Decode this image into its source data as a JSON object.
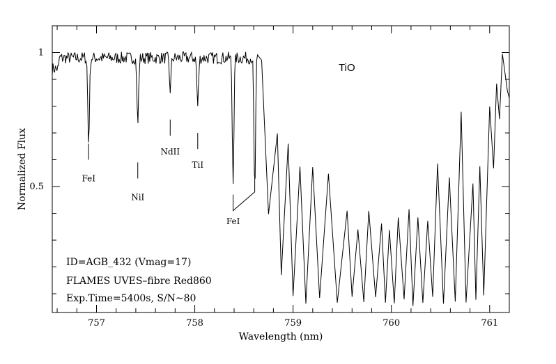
{
  "chart_data": {
    "type": "line",
    "xlabel": "Wavelength (nm)",
    "ylabel": "Normalized Flux",
    "xlim": [
      756.55,
      761.2
    ],
    "ylim": [
      0.03,
      1.1
    ],
    "x_ticks": [
      757,
      758,
      759,
      760,
      761
    ],
    "x_tick_labels": [
      "757",
      "758",
      "759",
      "760",
      "761"
    ],
    "y_ticks": [
      1,
      0.5
    ],
    "y_tick_labels": [
      "1",
      "0.5"
    ],
    "x_minor_step": 0.2,
    "y_minor_step": 0.1,
    "grid": false,
    "line_color": "#000000",
    "continuum": {
      "start": 756.55,
      "end": 758.65,
      "level": 0.98
    },
    "absorption_lines": [
      {
        "label": "FeI",
        "center": 756.92,
        "depth": 0.32
      },
      {
        "label": "NiI",
        "center": 757.42,
        "depth": 0.25
      },
      {
        "label": "NdII",
        "center": 757.75,
        "depth": 0.12
      },
      {
        "label": "TiI",
        "center": 758.03,
        "depth": 0.18
      },
      {
        "label": "FeI",
        "center": 758.39,
        "depth": 0.45
      },
      {
        "label": "FeI",
        "center": 758.61,
        "depth": 0.5
      }
    ],
    "band_peaks": [
      {
        "x": 758.68,
        "y": 0.97
      },
      {
        "x": 758.84,
        "y": 0.7
      },
      {
        "x": 758.95,
        "y": 0.66
      },
      {
        "x": 759.07,
        "y": 0.57
      },
      {
        "x": 759.2,
        "y": 0.57
      },
      {
        "x": 759.36,
        "y": 0.54
      },
      {
        "x": 759.55,
        "y": 0.4
      },
      {
        "x": 759.66,
        "y": 0.34
      },
      {
        "x": 759.77,
        "y": 0.4
      },
      {
        "x": 759.9,
        "y": 0.37
      },
      {
        "x": 759.98,
        "y": 0.33
      },
      {
        "x": 760.07,
        "y": 0.38
      },
      {
        "x": 760.18,
        "y": 0.41
      },
      {
        "x": 760.27,
        "y": 0.39
      },
      {
        "x": 760.37,
        "y": 0.38
      },
      {
        "x": 760.47,
        "y": 0.58
      },
      {
        "x": 760.59,
        "y": 0.53
      },
      {
        "x": 760.71,
        "y": 0.78
      },
      {
        "x": 760.83,
        "y": 0.51
      },
      {
        "x": 760.9,
        "y": 0.58
      },
      {
        "x": 761.0,
        "y": 0.8
      },
      {
        "x": 761.07,
        "y": 0.89
      },
      {
        "x": 761.13,
        "y": 1.0
      }
    ],
    "band_troughs": [
      {
        "x": 758.75,
        "y": 0.4
      },
      {
        "x": 758.88,
        "y": 0.17
      },
      {
        "x": 759.0,
        "y": 0.09
      },
      {
        "x": 759.13,
        "y": 0.06
      },
      {
        "x": 759.27,
        "y": 0.08
      },
      {
        "x": 759.45,
        "y": 0.06
      },
      {
        "x": 759.6,
        "y": 0.09
      },
      {
        "x": 759.72,
        "y": 0.06
      },
      {
        "x": 759.84,
        "y": 0.09
      },
      {
        "x": 759.94,
        "y": 0.07
      },
      {
        "x": 760.03,
        "y": 0.06
      },
      {
        "x": 760.13,
        "y": 0.07
      },
      {
        "x": 760.22,
        "y": 0.06
      },
      {
        "x": 760.32,
        "y": 0.06
      },
      {
        "x": 760.42,
        "y": 0.08
      },
      {
        "x": 760.53,
        "y": 0.06
      },
      {
        "x": 760.65,
        "y": 0.07
      },
      {
        "x": 760.76,
        "y": 0.06
      },
      {
        "x": 760.86,
        "y": 0.07
      },
      {
        "x": 760.94,
        "y": 0.09
      },
      {
        "x": 761.04,
        "y": 0.57
      },
      {
        "x": 761.1,
        "y": 0.75
      },
      {
        "x": 761.18,
        "y": 0.85
      }
    ],
    "annotations": {
      "molecule": "TiO",
      "target": "ID=AGB_432 (Vmag=17)",
      "instrument": "FLAMES UVES–fibre Red860",
      "exposure": "Exp.Time=5400s, S/N~80"
    }
  }
}
